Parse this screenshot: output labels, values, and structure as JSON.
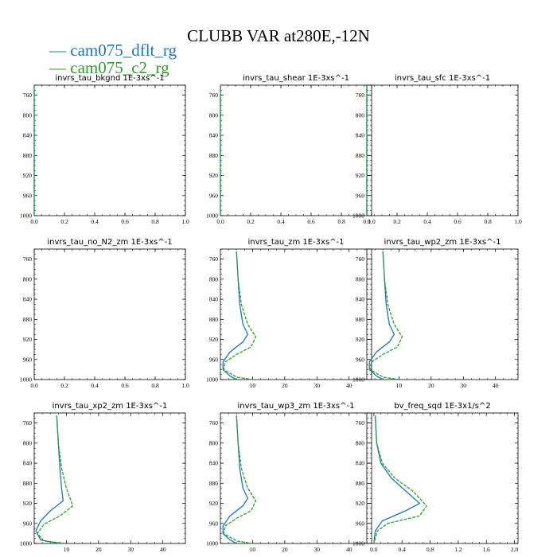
{
  "title": "CLUBB VAR at280E,-12N",
  "legend": [
    {
      "name": "cam075_dflt_rg",
      "color": "#1f77b4"
    },
    {
      "name": "cam075_c2_rg",
      "color": "#2ca02c"
    }
  ],
  "chart_data": [
    {
      "type": "line",
      "title": "invrs_tau_bkgnd",
      "unit": "1E-3xs^-1",
      "xlim": [
        0,
        1
      ],
      "xticks": [
        "0.0",
        "0.2",
        "0.4",
        "0.6",
        "0.8",
        "1.0"
      ],
      "ylim": [
        740,
        1000
      ],
      "yticks": [
        "760",
        "800",
        "840",
        "880",
        "920",
        "960",
        "1000"
      ],
      "series": [
        {
          "name": "cam075_dflt_rg",
          "points": [
            [
              0,
              740
            ],
            [
              0,
              1000
            ]
          ]
        },
        {
          "name": "cam075_c2_rg",
          "points": [
            [
              0,
              740
            ],
            [
              0,
              1000
            ]
          ]
        }
      ]
    },
    {
      "type": "line",
      "title": "invrs_tau_shear",
      "unit": "1E-3xs^-1",
      "xlim": [
        0,
        1
      ],
      "xticks": [
        "0.0",
        "0.2",
        "0.4",
        "0.6",
        "0.8",
        "1.0"
      ],
      "ylim": [
        740,
        1000
      ],
      "yticks": [
        "760",
        "800",
        "840",
        "880",
        "920",
        "960",
        "1000"
      ],
      "series": [
        {
          "name": "cam075_dflt_rg",
          "points": [
            [
              0,
              740
            ],
            [
              0,
              1000
            ]
          ]
        },
        {
          "name": "cam075_c2_rg",
          "points": [
            [
              0,
              740
            ],
            [
              0,
              1000
            ]
          ]
        }
      ]
    },
    {
      "type": "line",
      "title": "invrs_tau_sfc",
      "unit": "1E-3xs^-1",
      "xlim": [
        0,
        1
      ],
      "xticks": [
        "0.0",
        "0.2",
        "0.4",
        "0.6",
        "0.8",
        "1.0"
      ],
      "ylim": [
        740,
        1000
      ],
      "yticks": [
        "760",
        "800",
        "840",
        "880",
        "920",
        "960",
        "1000"
      ],
      "series": [
        {
          "name": "cam075_dflt_rg",
          "points": [
            [
              0,
              740
            ],
            [
              0,
              1000
            ]
          ]
        },
        {
          "name": "cam075_c2_rg",
          "points": [
            [
              0,
              740
            ],
            [
              0,
              1000
            ]
          ]
        }
      ]
    },
    {
      "type": "line",
      "title": "invrs_tau_no_N2_zm",
      "unit": "1E-3xs^-1",
      "xlim": [
        0,
        1
      ],
      "xticks": [
        "0.0",
        "0.2",
        "0.4",
        "0.6",
        "0.8",
        "1.0"
      ],
      "ylim": [
        740,
        1000
      ],
      "yticks": [
        "760",
        "800",
        "840",
        "880",
        "920",
        "960",
        "1000"
      ],
      "series": []
    },
    {
      "type": "line",
      "title": "invrs_tau_zm",
      "unit": "1E-3xs^-1",
      "xlim": [
        0,
        47
      ],
      "xticks": [
        "10",
        "20",
        "30",
        "40"
      ],
      "xtickvals": [
        10,
        20,
        30,
        40
      ],
      "ylim": [
        740,
        1000
      ],
      "yticks": [
        "760",
        "800",
        "840",
        "880",
        "920",
        "960",
        "1000"
      ],
      "series": [
        {
          "name": "cam075_dflt_rg",
          "points": [
            [
              5,
              745
            ],
            [
              5.5,
              800
            ],
            [
              6,
              850
            ],
            [
              7,
              890
            ],
            [
              8.5,
              910
            ],
            [
              7,
              925
            ],
            [
              3,
              945
            ],
            [
              0.8,
              965
            ],
            [
              0.8,
              980
            ],
            [
              3,
              993
            ],
            [
              5,
              1000
            ]
          ]
        },
        {
          "name": "cam075_c2_rg",
          "points": [
            [
              5,
              745
            ],
            [
              5.5,
              800
            ],
            [
              6.5,
              850
            ],
            [
              8.5,
              890
            ],
            [
              11,
              915
            ],
            [
              9.5,
              935
            ],
            [
              5,
              950
            ],
            [
              1.5,
              965
            ],
            [
              1,
              980
            ],
            [
              5,
              995
            ],
            [
              10,
              1000
            ]
          ]
        }
      ]
    },
    {
      "type": "line",
      "title": "invrs_tau_wp2_zm",
      "unit": "1E-3xs^-1",
      "xlim": [
        0,
        47
      ],
      "xticks": [
        "10",
        "20",
        "30",
        "40"
      ],
      "xtickvals": [
        10,
        20,
        30,
        40
      ],
      "ylim": [
        740,
        1000
      ],
      "yticks": [
        "760",
        "800",
        "840",
        "880",
        "920",
        "960",
        "1000"
      ],
      "series": [
        {
          "name": "cam075_dflt_rg",
          "points": [
            [
              5,
              745
            ],
            [
              5.5,
              800
            ],
            [
              6,
              850
            ],
            [
              7,
              890
            ],
            [
              8.5,
              910
            ],
            [
              7,
              925
            ],
            [
              3,
              945
            ],
            [
              0.8,
              965
            ],
            [
              0.8,
              980
            ],
            [
              3,
              993
            ],
            [
              5,
              1000
            ]
          ]
        },
        {
          "name": "cam075_c2_rg",
          "points": [
            [
              5,
              745
            ],
            [
              5.5,
              800
            ],
            [
              6.5,
              850
            ],
            [
              8.5,
              890
            ],
            [
              11,
              915
            ],
            [
              9.5,
              935
            ],
            [
              5,
              950
            ],
            [
              1.5,
              965
            ],
            [
              1,
              980
            ],
            [
              5,
              995
            ],
            [
              10,
              1000
            ]
          ]
        }
      ]
    },
    {
      "type": "line",
      "title": "invrs_tau_xp2_zm",
      "unit": "1E-3xs^-1",
      "xlim": [
        0,
        47
      ],
      "xticks": [
        "10",
        "20",
        "30",
        "40"
      ],
      "xtickvals": [
        10,
        20,
        30,
        40
      ],
      "ylim": [
        740,
        1000
      ],
      "yticks": [
        "760",
        "800",
        "840",
        "880",
        "920",
        "960",
        "1000"
      ],
      "series": [
        {
          "name": "cam075_dflt_rg",
          "points": [
            [
              7,
              745
            ],
            [
              7.5,
              800
            ],
            [
              8,
              850
            ],
            [
              8.5,
              890
            ],
            [
              9,
              915
            ],
            [
              5,
              935
            ],
            [
              2,
              955
            ],
            [
              0.5,
              975
            ],
            [
              2,
              993
            ],
            [
              8,
              1000
            ]
          ]
        },
        {
          "name": "cam075_c2_rg",
          "points": [
            [
              7,
              745
            ],
            [
              7.5,
              800
            ],
            [
              8.5,
              850
            ],
            [
              10,
              890
            ],
            [
              12,
              925
            ],
            [
              8,
              945
            ],
            [
              3,
              962
            ],
            [
              1,
              980
            ],
            [
              3,
              995
            ],
            [
              10,
              1000
            ]
          ]
        }
      ]
    },
    {
      "type": "line",
      "title": "invrs_tau_wp3_zm",
      "unit": "1E-3xs^-1",
      "xlim": [
        0,
        47
      ],
      "xticks": [
        "10",
        "20",
        "30",
        "40"
      ],
      "xtickvals": [
        10,
        20,
        30,
        40
      ],
      "ylim": [
        740,
        1000
      ],
      "yticks": [
        "760",
        "800",
        "840",
        "880",
        "920",
        "960",
        "1000"
      ],
      "series": [
        {
          "name": "cam075_dflt_rg",
          "points": [
            [
              5,
              745
            ],
            [
              5.5,
              800
            ],
            [
              6,
              850
            ],
            [
              7,
              890
            ],
            [
              8.5,
              910
            ],
            [
              7,
              925
            ],
            [
              3,
              945
            ],
            [
              0.8,
              965
            ],
            [
              0.8,
              980
            ],
            [
              3,
              993
            ],
            [
              5,
              1000
            ]
          ]
        },
        {
          "name": "cam075_c2_rg",
          "points": [
            [
              5,
              745
            ],
            [
              5.5,
              800
            ],
            [
              6.5,
              850
            ],
            [
              8.5,
              890
            ],
            [
              11,
              915
            ],
            [
              9.5,
              935
            ],
            [
              5,
              950
            ],
            [
              1.5,
              965
            ],
            [
              1,
              980
            ],
            [
              5,
              995
            ],
            [
              10,
              1000
            ]
          ]
        }
      ]
    },
    {
      "type": "line",
      "title": "bv_freq_sqd",
      "unit": "1E-3x1/s^2",
      "xlim": [
        -0.1,
        2.05
      ],
      "xticks": [
        "0.0",
        "0.4",
        "0.8",
        "1.2",
        "1.6",
        "2.0"
      ],
      "xtickvals": [
        0,
        0.4,
        0.8,
        1.2,
        1.6,
        2.0
      ],
      "ylim": [
        740,
        1000
      ],
      "yticks": [
        "760",
        "800",
        "840",
        "880",
        "920",
        "960",
        "1000"
      ],
      "series": [
        {
          "name": "cam075_dflt_rg",
          "points": [
            [
              0.02,
              745
            ],
            [
              0.04,
              800
            ],
            [
              0.1,
              840
            ],
            [
              0.25,
              870
            ],
            [
              0.45,
              895
            ],
            [
              0.65,
              920
            ],
            [
              0.45,
              935
            ],
            [
              0.12,
              955
            ],
            [
              0.02,
              975
            ],
            [
              0,
              1000
            ]
          ]
        },
        {
          "name": "cam075_c2_rg",
          "points": [
            [
              0.02,
              745
            ],
            [
              0.04,
              800
            ],
            [
              0.12,
              840
            ],
            [
              0.3,
              870
            ],
            [
              0.55,
              895
            ],
            [
              0.75,
              925
            ],
            [
              0.65,
              945
            ],
            [
              0.2,
              960
            ],
            [
              0.05,
              975
            ],
            [
              0,
              1000
            ]
          ]
        }
      ]
    }
  ]
}
